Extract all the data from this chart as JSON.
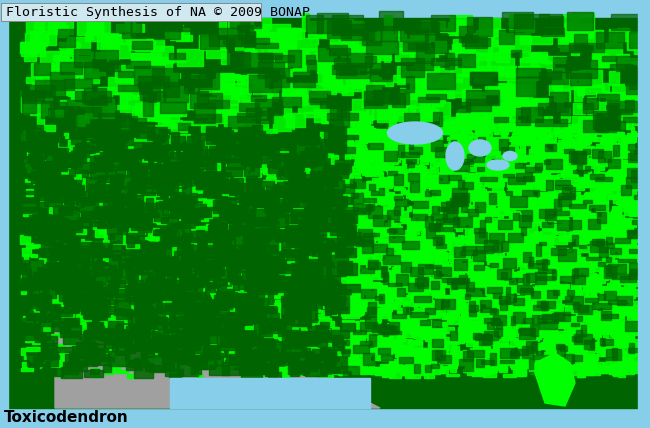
{
  "title": "Floristic Synthesis of NA © 2009 BONAP",
  "subtitle": "Toxicodendron",
  "background_color": "#87CEEB",
  "title_bg_color": "#d0e8f0",
  "title_fontsize": 10,
  "subtitle_fontsize": 11,
  "figsize": [
    6.5,
    4.28
  ],
  "dpi": 100,
  "colors": {
    "bright_green": "#00FF00",
    "dark_green": "#006400",
    "light_blue": "#87CEEB",
    "gray": "#A0A0A0",
    "dark_gray": "#505050",
    "white": "#FFFFFF",
    "black": "#000000"
  }
}
